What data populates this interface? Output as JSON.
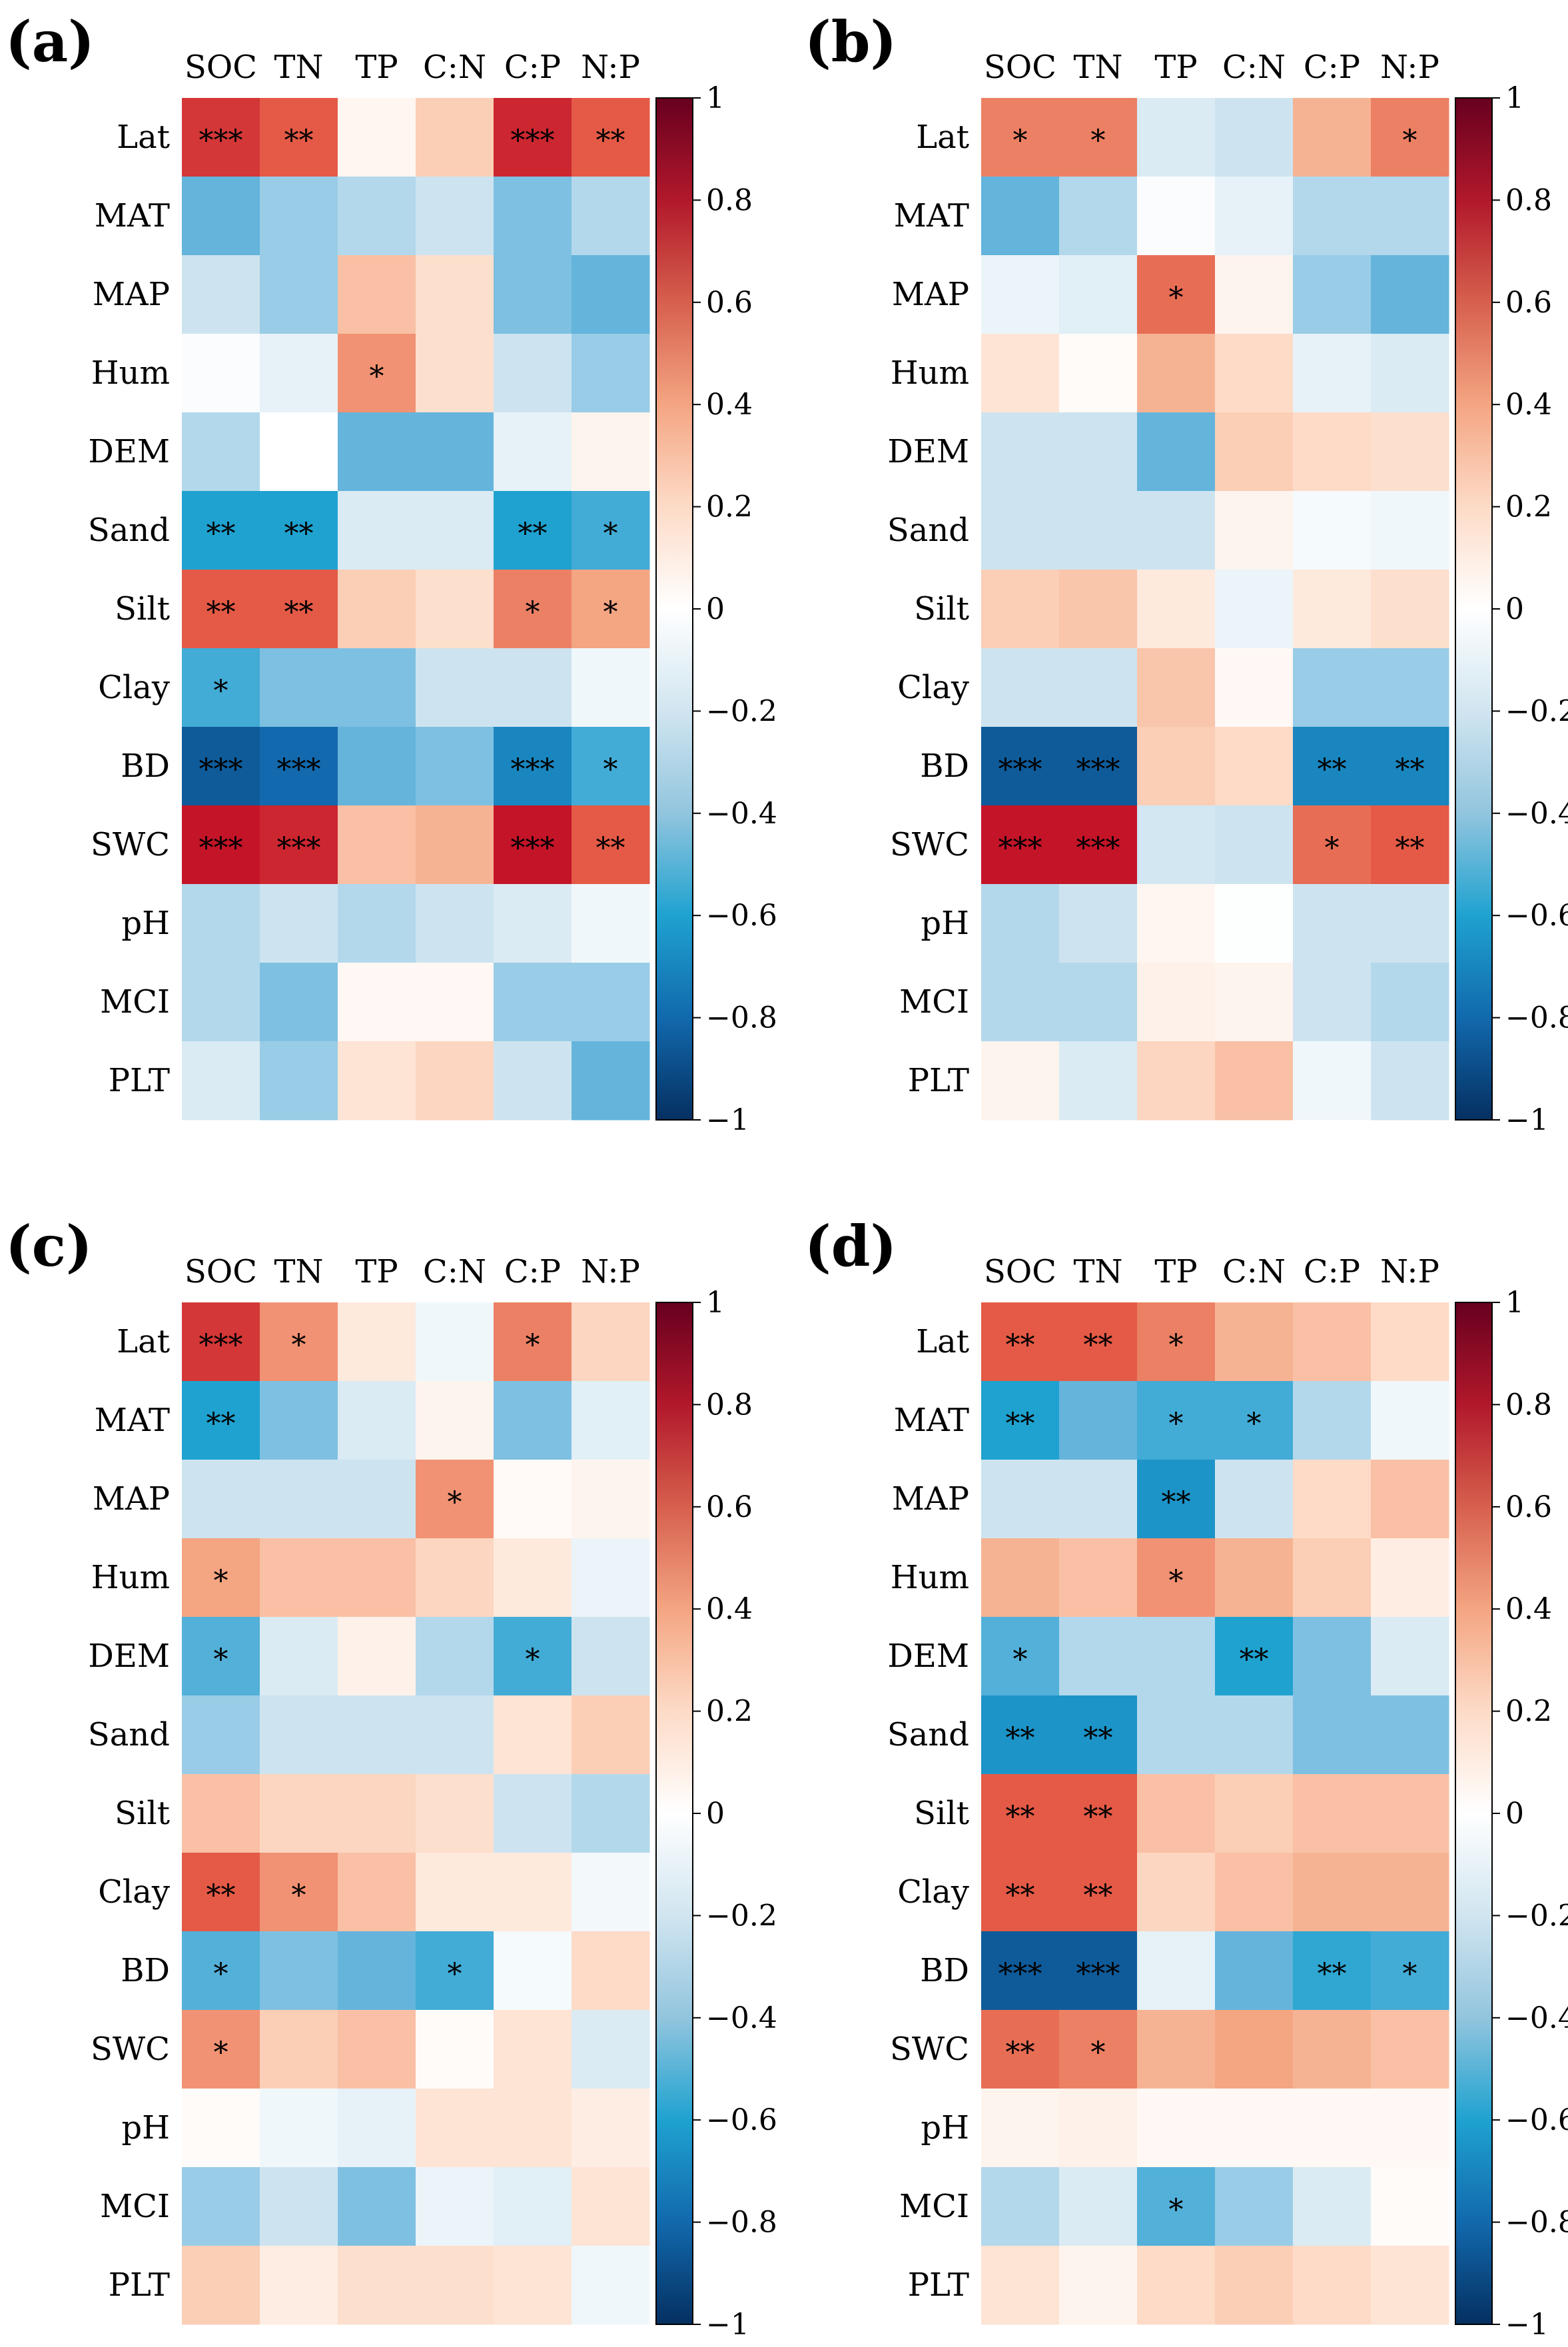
{
  "chart_data": [
    {
      "type": "heatmap",
      "panel": "(a)",
      "columns": [
        "SOC",
        "TN",
        "TP",
        "C:N",
        "C:P",
        "N:P"
      ],
      "rows": [
        "Lat",
        "MAT",
        "MAP",
        "Hum",
        "DEM",
        "Sand",
        "Silt",
        "Clay",
        "BD",
        "SWC",
        "pH",
        "MCI",
        "PLT"
      ],
      "values": [
        [
          0.7,
          0.6,
          0.05,
          0.25,
          0.75,
          0.6
        ],
        [
          -0.4,
          -0.3,
          -0.25,
          -0.2,
          -0.35,
          -0.25
        ],
        [
          -0.2,
          -0.3,
          0.3,
          0.18,
          -0.35,
          -0.4
        ],
        [
          -0.02,
          -0.1,
          0.45,
          0.18,
          -0.2,
          -0.3
        ],
        [
          -0.25,
          0.0,
          -0.4,
          -0.4,
          -0.1,
          0.06
        ],
        [
          -0.6,
          -0.6,
          -0.15,
          -0.15,
          -0.6,
          -0.5
        ],
        [
          0.6,
          0.6,
          0.25,
          0.18,
          0.5,
          0.4
        ],
        [
          -0.5,
          -0.35,
          -0.35,
          -0.2,
          -0.2,
          -0.06
        ],
        [
          -0.85,
          -0.8,
          -0.4,
          -0.35,
          -0.7,
          -0.5
        ],
        [
          0.8,
          0.75,
          0.3,
          0.35,
          0.8,
          0.6
        ],
        [
          -0.25,
          -0.2,
          -0.25,
          -0.2,
          -0.15,
          -0.06
        ],
        [
          -0.25,
          -0.35,
          0.04,
          0.04,
          -0.3,
          -0.3
        ],
        [
          -0.15,
          -0.3,
          0.15,
          0.22,
          -0.2,
          -0.4
        ]
      ],
      "significance": [
        [
          "***",
          "**",
          "",
          "",
          "***",
          "**"
        ],
        [
          "",
          "",
          "",
          "",
          "",
          ""
        ],
        [
          "",
          "",
          "",
          "",
          "",
          ""
        ],
        [
          "",
          "",
          "*",
          "",
          "",
          ""
        ],
        [
          "",
          "",
          "",
          "",
          "",
          ""
        ],
        [
          "**",
          "**",
          "",
          "",
          "**",
          "*"
        ],
        [
          "**",
          "**",
          "",
          "",
          "*",
          "*"
        ],
        [
          "*",
          "",
          "",
          "",
          "",
          ""
        ],
        [
          "***",
          "***",
          "",
          "",
          "***",
          "*"
        ],
        [
          "***",
          "***",
          "",
          "",
          "***",
          "**"
        ],
        [
          "",
          "",
          "",
          "",
          "",
          ""
        ],
        [
          "",
          "",
          "",
          "",
          "",
          ""
        ],
        [
          "",
          "",
          "",
          "",
          "",
          ""
        ]
      ],
      "colorbar": {
        "range": [
          -1,
          1
        ],
        "ticks": [
          "1",
          "0.8",
          "0.6",
          "0.4",
          "0.2",
          "0",
          "−0.2",
          "−0.4",
          "−0.6",
          "−0.8",
          "−1"
        ]
      }
    },
    {
      "type": "heatmap",
      "panel": "(b)",
      "columns": [
        "SOC",
        "TN",
        "TP",
        "C:N",
        "C:P",
        "N:P"
      ],
      "rows": [
        "Lat",
        "MAT",
        "MAP",
        "Hum",
        "DEM",
        "Sand",
        "Silt",
        "Clay",
        "BD",
        "SWC",
        "pH",
        "MCI",
        "PLT"
      ],
      "values": [
        [
          0.5,
          0.5,
          -0.15,
          -0.2,
          0.35,
          0.5
        ],
        [
          -0.4,
          -0.25,
          -0.02,
          -0.1,
          -0.25,
          -0.25
        ],
        [
          -0.08,
          -0.12,
          0.55,
          0.06,
          -0.3,
          -0.4
        ],
        [
          0.15,
          0.02,
          0.35,
          0.2,
          -0.1,
          -0.15
        ],
        [
          -0.2,
          -0.2,
          -0.4,
          0.25,
          0.2,
          0.18
        ],
        [
          -0.2,
          -0.2,
          -0.2,
          0.06,
          -0.04,
          -0.06
        ],
        [
          0.25,
          0.28,
          0.12,
          -0.08,
          0.12,
          0.18
        ],
        [
          -0.2,
          -0.2,
          0.28,
          0.04,
          -0.3,
          -0.3
        ],
        [
          -0.85,
          -0.85,
          0.25,
          0.2,
          -0.7,
          -0.7
        ],
        [
          0.8,
          0.8,
          -0.18,
          -0.2,
          0.55,
          0.6
        ],
        [
          -0.25,
          -0.2,
          0.05,
          -0.01,
          -0.2,
          -0.2
        ],
        [
          -0.25,
          -0.25,
          0.08,
          0.06,
          -0.2,
          -0.25
        ],
        [
          0.06,
          -0.15,
          0.22,
          0.3,
          -0.06,
          -0.2
        ]
      ],
      "significance": [
        [
          "*",
          "*",
          "",
          "",
          "",
          "*"
        ],
        [
          "",
          "",
          "",
          "",
          "",
          ""
        ],
        [
          "",
          "",
          "*",
          "",
          "",
          ""
        ],
        [
          "",
          "",
          "",
          "",
          "",
          ""
        ],
        [
          "",
          "",
          "",
          "",
          "",
          ""
        ],
        [
          "",
          "",
          "",
          "",
          "",
          ""
        ],
        [
          "",
          "",
          "",
          "",
          "",
          ""
        ],
        [
          "",
          "",
          "",
          "",
          "",
          ""
        ],
        [
          "***",
          "***",
          "",
          "",
          "**",
          "**"
        ],
        [
          "***",
          "***",
          "",
          "",
          "*",
          "**"
        ],
        [
          "",
          "",
          "",
          "",
          "",
          ""
        ],
        [
          "",
          "",
          "",
          "",
          "",
          ""
        ],
        [
          "",
          "",
          "",
          "",
          "",
          ""
        ]
      ],
      "colorbar": {
        "range": [
          -1,
          1
        ],
        "ticks": [
          "1",
          "0.8",
          "0.6",
          "0.4",
          "0.2",
          "0",
          "−0.2",
          "−0.4",
          "−0.6",
          "−0.8",
          "−1"
        ]
      }
    },
    {
      "type": "heatmap",
      "panel": "(c)",
      "columns": [
        "SOC",
        "TN",
        "TP",
        "C:N",
        "C:P",
        "N:P"
      ],
      "rows": [
        "Lat",
        "MAT",
        "MAP",
        "Hum",
        "DEM",
        "Sand",
        "Silt",
        "Clay",
        "BD",
        "SWC",
        "pH",
        "MCI",
        "PLT"
      ],
      "values": [
        [
          0.7,
          0.45,
          0.12,
          -0.06,
          0.5,
          0.22
        ],
        [
          -0.6,
          -0.35,
          -0.15,
          0.06,
          -0.35,
          -0.12
        ],
        [
          -0.2,
          -0.2,
          -0.2,
          0.45,
          0.03,
          0.06
        ],
        [
          0.4,
          0.3,
          0.3,
          0.22,
          0.12,
          -0.08
        ],
        [
          -0.45,
          -0.15,
          0.08,
          -0.25,
          -0.5,
          -0.2
        ],
        [
          -0.3,
          -0.2,
          -0.2,
          -0.2,
          0.15,
          0.25
        ],
        [
          0.3,
          0.22,
          0.22,
          0.18,
          -0.2,
          -0.25
        ],
        [
          0.6,
          0.45,
          0.3,
          0.12,
          0.12,
          -0.05
        ],
        [
          -0.45,
          -0.35,
          -0.4,
          -0.5,
          -0.04,
          0.2
        ],
        [
          0.45,
          0.25,
          0.3,
          0.02,
          0.15,
          -0.15
        ],
        [
          0.02,
          -0.06,
          -0.1,
          0.15,
          0.15,
          0.1
        ],
        [
          -0.3,
          -0.2,
          -0.35,
          -0.08,
          -0.12,
          0.15
        ],
        [
          0.25,
          0.1,
          0.18,
          0.18,
          0.15,
          -0.06
        ]
      ],
      "significance": [
        [
          "***",
          "*",
          "",
          "",
          "*",
          ""
        ],
        [
          "**",
          "",
          "",
          "",
          "",
          ""
        ],
        [
          "",
          "",
          "",
          "*",
          "",
          ""
        ],
        [
          "*",
          "",
          "",
          "",
          "",
          ""
        ],
        [
          "*",
          "",
          "",
          "",
          "*",
          ""
        ],
        [
          "",
          "",
          "",
          "",
          "",
          ""
        ],
        [
          "",
          "",
          "",
          "",
          "",
          ""
        ],
        [
          "**",
          "*",
          "",
          "",
          "",
          ""
        ],
        [
          "*",
          "",
          "",
          "*",
          "",
          ""
        ],
        [
          "*",
          "",
          "",
          "",
          "",
          ""
        ],
        [
          "",
          "",
          "",
          "",
          "",
          ""
        ],
        [
          "",
          "",
          "",
          "",
          "",
          ""
        ],
        [
          "",
          "",
          "",
          "",
          "",
          ""
        ]
      ],
      "colorbar": {
        "range": [
          -1,
          1
        ],
        "ticks": [
          "1",
          "0.8",
          "0.6",
          "0.4",
          "0.2",
          "0",
          "−0.2",
          "−0.4",
          "−0.6",
          "−0.8",
          "−1"
        ]
      }
    },
    {
      "type": "heatmap",
      "panel": "(d)",
      "columns": [
        "SOC",
        "TN",
        "TP",
        "C:N",
        "C:P",
        "N:P"
      ],
      "rows": [
        "Lat",
        "MAT",
        "MAP",
        "Hum",
        "DEM",
        "Sand",
        "Silt",
        "Clay",
        "BD",
        "SWC",
        "pH",
        "MCI",
        "PLT"
      ],
      "values": [
        [
          0.6,
          0.6,
          0.5,
          0.35,
          0.3,
          0.2
        ],
        [
          -0.6,
          -0.4,
          -0.5,
          -0.5,
          -0.25,
          -0.06
        ],
        [
          -0.2,
          -0.2,
          -0.65,
          -0.2,
          0.2,
          0.3
        ],
        [
          0.35,
          0.3,
          0.45,
          0.35,
          0.25,
          0.1
        ],
        [
          -0.45,
          -0.25,
          -0.25,
          -0.6,
          -0.35,
          -0.15
        ],
        [
          -0.65,
          -0.65,
          -0.25,
          -0.25,
          -0.35,
          -0.35
        ],
        [
          0.6,
          0.6,
          0.3,
          0.25,
          0.3,
          0.3
        ],
        [
          0.6,
          0.6,
          0.22,
          0.3,
          0.35,
          0.35
        ],
        [
          -0.85,
          -0.85,
          -0.1,
          -0.4,
          -0.55,
          -0.5
        ],
        [
          0.55,
          0.5,
          0.35,
          0.4,
          0.35,
          0.3
        ],
        [
          0.06,
          0.08,
          0.04,
          0.04,
          0.04,
          0.04
        ],
        [
          -0.25,
          -0.15,
          -0.45,
          -0.3,
          -0.15,
          0.02
        ],
        [
          0.15,
          0.06,
          0.2,
          0.25,
          0.2,
          0.15
        ]
      ],
      "significance": [
        [
          "**",
          "**",
          "*",
          "",
          "",
          ""
        ],
        [
          "**",
          "",
          "*",
          "*",
          "",
          ""
        ],
        [
          "",
          "",
          "**",
          "",
          "",
          ""
        ],
        [
          "",
          "",
          "*",
          "",
          "",
          ""
        ],
        [
          "*",
          "",
          "",
          "**",
          "",
          ""
        ],
        [
          "**",
          "**",
          "",
          "",
          "",
          ""
        ],
        [
          "**",
          "**",
          "",
          "",
          "",
          ""
        ],
        [
          "**",
          "**",
          "",
          "",
          "",
          ""
        ],
        [
          "***",
          "***",
          "",
          "",
          "**",
          "*"
        ],
        [
          "**",
          "*",
          "",
          "",
          "",
          ""
        ],
        [
          "",
          "",
          "",
          "",
          "",
          ""
        ],
        [
          "",
          "",
          "*",
          "",
          "",
          ""
        ],
        [
          "",
          "",
          "",
          "",
          "",
          ""
        ]
      ],
      "colorbar": {
        "range": [
          -1,
          1
        ],
        "ticks": [
          "1",
          "0.8",
          "0.6",
          "0.4",
          "0.2",
          "0",
          "−0.2",
          "−0.4",
          "−0.6",
          "−0.8",
          "−1"
        ]
      }
    }
  ]
}
